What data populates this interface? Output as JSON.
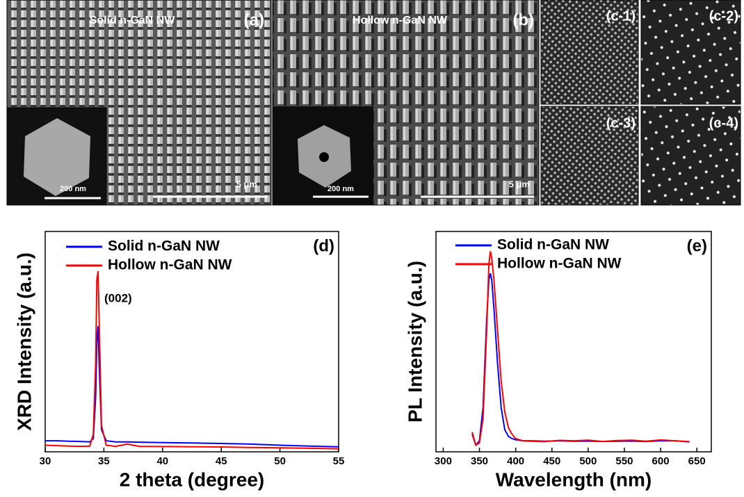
{
  "image_panels": [
    {
      "title": "Solid n-GaN NW",
      "label": "(a)",
      "inset_scale": "200 nm",
      "scale": "5 μm"
    },
    {
      "title": "Hollow n-GaN NW",
      "label": "(b)",
      "inset_scale": "200 nm",
      "scale": "5 μm"
    },
    {
      "label": "(c-1)"
    },
    {
      "label": "(c-2)"
    },
    {
      "label": "(c-3)"
    },
    {
      "label": "(c-4)"
    }
  ],
  "chart_data": [
    {
      "type": "line",
      "label": "(d)",
      "xlabel": "2 theta (degree)",
      "ylabel": "XRD Intensity (a.u.)",
      "annotation": "(002)",
      "x": [
        30,
        31,
        32,
        33,
        33.8,
        34.1,
        34.3,
        34.4,
        34.5,
        34.6,
        34.8,
        35.2,
        36,
        37,
        38,
        40,
        42.5,
        45,
        47.5,
        50,
        52.5,
        55
      ],
      "series": [
        {
          "name": "Solid n-GaN NW",
          "color": "#0000ff",
          "values": [
            5,
            5,
            4.8,
            4.7,
            4.5,
            6,
            25,
            50,
            57,
            40,
            10,
            5,
            4.5,
            4.5,
            4.4,
            4.2,
            4,
            3.8,
            3.5,
            3,
            2.6,
            2.3
          ]
        },
        {
          "name": "Hollow n-GaN NW",
          "color": "#ff0000",
          "values": [
            3,
            2.8,
            2.6,
            2.5,
            2.6,
            8,
            40,
            78,
            82,
            60,
            12,
            3,
            2.5,
            3.5,
            2.5,
            2.4,
            2.3,
            2.2,
            2,
            1.8,
            1.6,
            1.4
          ]
        }
      ],
      "xlim": [
        30,
        55
      ],
      "xticks": [
        30,
        35,
        40,
        45,
        50,
        55
      ],
      "ylim": [
        0,
        100
      ]
    },
    {
      "type": "line",
      "label": "(e)",
      "xlabel": "Wavelength (nm)",
      "ylabel": "PL Intensity (a.u.)",
      "x": [
        340,
        345,
        350,
        355,
        360,
        363,
        365,
        367,
        370,
        375,
        380,
        385,
        390,
        395,
        400,
        410,
        420,
        440,
        460,
        480,
        500,
        520,
        540,
        560,
        580,
        600,
        620,
        640
      ],
      "series": [
        {
          "name": "Solid n-GaN NW",
          "color": "#0000ff",
          "values": [
            8,
            3,
            5,
            20,
            60,
            78,
            81,
            78,
            65,
            40,
            20,
            10,
            7,
            6,
            5.5,
            5,
            5,
            4.8,
            5,
            4.8,
            4.9,
            4.7,
            4.8,
            4.9,
            4.7,
            5,
            5,
            4.5
          ]
        },
        {
          "name": "Hollow n-GaN NW",
          "color": "#ff0000",
          "values": [
            9,
            3,
            4,
            15,
            55,
            85,
            91,
            88,
            78,
            55,
            32,
            18,
            11,
            8,
            6,
            5,
            4.8,
            4.6,
            5.2,
            5,
            5.3,
            4.7,
            5.1,
            5.3,
            4.8,
            5.4,
            5,
            4.6
          ]
        }
      ],
      "xlim": [
        290,
        670
      ],
      "xticks": [
        300,
        350,
        400,
        450,
        500,
        550,
        600,
        650
      ],
      "ylim": [
        0,
        100
      ]
    }
  ]
}
